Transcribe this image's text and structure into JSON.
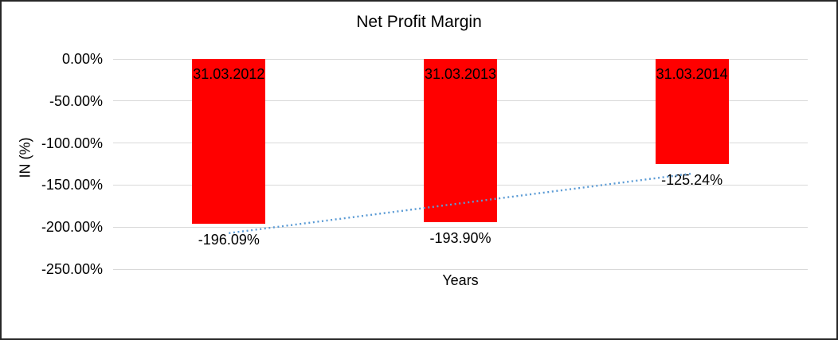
{
  "chart_data": {
    "type": "bar",
    "title": "Net Profit Margin",
    "xlabel": "Years",
    "ylabel": "IN (%)",
    "categories": [
      "31.03.2012",
      "31.03.2013",
      "31.03.2014"
    ],
    "values": [
      -196.09,
      -193.9,
      -125.24
    ],
    "value_labels": [
      "-196.09%",
      "-193.90%",
      "-125.24%"
    ],
    "y_ticks": [
      {
        "label": "0.00%",
        "value": 0
      },
      {
        "label": "-50.00%",
        "value": -50
      },
      {
        "label": "-100.00%",
        "value": -100
      },
      {
        "label": "-150.00%",
        "value": -150
      },
      {
        "label": "-200.00%",
        "value": -200
      },
      {
        "label": "-250.00%",
        "value": -250
      }
    ],
    "ylim": [
      -250,
      0
    ],
    "grid": true,
    "legend": "none",
    "trendline": {
      "type": "linear",
      "style": "dotted"
    },
    "colors": {
      "bar": "#FF0000",
      "trendline": "#5B9BD5",
      "gridline": "#D9D9D9",
      "text": "#000000",
      "border": "#262626"
    }
  }
}
